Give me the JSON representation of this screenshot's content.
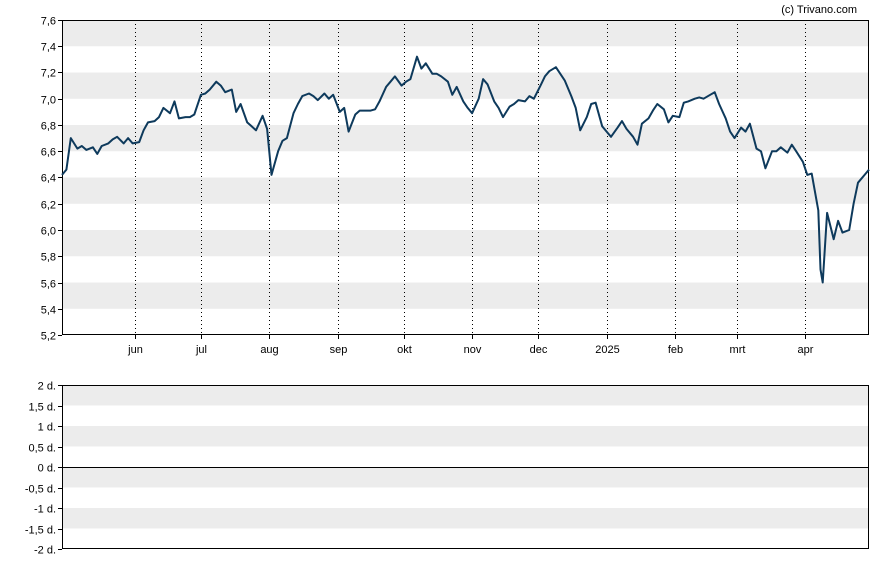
{
  "credit": "(c) Trivano.com",
  "chart_data": [
    {
      "type": "line",
      "title": "",
      "xlabel": "",
      "ylabel": "",
      "ylim": [
        5.2,
        7.6
      ],
      "yticks": [
        "7,6",
        "7,4",
        "7,2",
        "7,0",
        "6,8",
        "6,6",
        "6,4",
        "6,2",
        "6,0",
        "5,8",
        "5,6",
        "5,4",
        "5,2"
      ],
      "ytick_values": [
        7.6,
        7.4,
        7.2,
        7.0,
        6.8,
        6.6,
        6.4,
        6.2,
        6.0,
        5.8,
        5.6,
        5.4,
        5.2
      ],
      "xlim": [
        "2024-04-29",
        "2025-04-30"
      ],
      "xticks": [
        {
          "label": "jun",
          "date": "2024-06-01"
        },
        {
          "label": "jul",
          "date": "2024-07-01"
        },
        {
          "label": "aug",
          "date": "2024-08-01"
        },
        {
          "label": "sep",
          "date": "2024-09-01"
        },
        {
          "label": "okt",
          "date": "2024-10-01"
        },
        {
          "label": "nov",
          "date": "2024-11-01"
        },
        {
          "label": "dec",
          "date": "2024-12-01"
        },
        {
          "label": "2025",
          "date": "2025-01-01"
        },
        {
          "label": "feb",
          "date": "2025-02-01"
        },
        {
          "label": "mrt",
          "date": "2025-03-01"
        },
        {
          "label": "apr",
          "date": "2025-04-01"
        }
      ],
      "grid": "alternating-bands",
      "line_color": "#0e3a5c",
      "series": [
        {
          "x": [
            "2024-04-29",
            "2024-05-01",
            "2024-05-03",
            "2024-05-06",
            "2024-05-08",
            "2024-05-10",
            "2024-05-13",
            "2024-05-15",
            "2024-05-17",
            "2024-05-20",
            "2024-05-22",
            "2024-05-24",
            "2024-05-27",
            "2024-05-29",
            "2024-05-31",
            "2024-06-03",
            "2024-06-05",
            "2024-06-07",
            "2024-06-10",
            "2024-06-12",
            "2024-06-14",
            "2024-06-17",
            "2024-06-19",
            "2024-06-21",
            "2024-06-24",
            "2024-06-26",
            "2024-06-28",
            "2024-07-01",
            "2024-07-03",
            "2024-07-05",
            "2024-07-08",
            "2024-07-10",
            "2024-07-12",
            "2024-07-15",
            "2024-07-17",
            "2024-07-19",
            "2024-07-22",
            "2024-07-24",
            "2024-07-26",
            "2024-07-29",
            "2024-07-31",
            "2024-08-02",
            "2024-08-05",
            "2024-08-07",
            "2024-08-09",
            "2024-08-12",
            "2024-08-14",
            "2024-08-16",
            "2024-08-19",
            "2024-08-21",
            "2024-08-23",
            "2024-08-26",
            "2024-08-28",
            "2024-08-30",
            "2024-09-02",
            "2024-09-04",
            "2024-09-06",
            "2024-09-09",
            "2024-09-11",
            "2024-09-13",
            "2024-09-16",
            "2024-09-18",
            "2024-09-20",
            "2024-09-23",
            "2024-09-25",
            "2024-09-27",
            "2024-09-30",
            "2024-10-02",
            "2024-10-04",
            "2024-10-07",
            "2024-10-09",
            "2024-10-11",
            "2024-10-14",
            "2024-10-16",
            "2024-10-18",
            "2024-10-21",
            "2024-10-23",
            "2024-10-25",
            "2024-10-28",
            "2024-10-30",
            "2024-11-01",
            "2024-11-04",
            "2024-11-06",
            "2024-11-08",
            "2024-11-11",
            "2024-11-13",
            "2024-11-15",
            "2024-11-18",
            "2024-11-20",
            "2024-11-22",
            "2024-11-25",
            "2024-11-27",
            "2024-11-29",
            "2024-12-02",
            "2024-12-04",
            "2024-12-06",
            "2024-12-09",
            "2024-12-11",
            "2024-12-13",
            "2024-12-16",
            "2024-12-18",
            "2024-12-20",
            "2024-12-23",
            "2024-12-25",
            "2024-12-27",
            "2024-12-30",
            "2025-01-01",
            "2025-01-03",
            "2025-01-06",
            "2025-01-08",
            "2025-01-10",
            "2025-01-13",
            "2025-01-15",
            "2025-01-17",
            "2025-01-20",
            "2025-01-22",
            "2025-01-24",
            "2025-01-27",
            "2025-01-29",
            "2025-01-31",
            "2025-02-03",
            "2025-02-05",
            "2025-02-07",
            "2025-02-10",
            "2025-02-12",
            "2025-02-14",
            "2025-02-17",
            "2025-02-19",
            "2025-02-21",
            "2025-02-24",
            "2025-02-26",
            "2025-02-28",
            "2025-03-03",
            "2025-03-05",
            "2025-03-07",
            "2025-03-10",
            "2025-03-12",
            "2025-03-14",
            "2025-03-17",
            "2025-03-19",
            "2025-03-21",
            "2025-03-24",
            "2025-03-26",
            "2025-03-28",
            "2025-03-31",
            "2025-04-02",
            "2025-04-04",
            "2025-04-07",
            "2025-04-08",
            "2025-04-09",
            "2025-04-11",
            "2025-04-14",
            "2025-04-16",
            "2025-04-18",
            "2025-04-21",
            "2025-04-23",
            "2025-04-25",
            "2025-04-28",
            "2025-04-30"
          ],
          "y": [
            6.42,
            6.46,
            6.7,
            6.62,
            6.64,
            6.61,
            6.63,
            6.58,
            6.64,
            6.66,
            6.69,
            6.71,
            6.66,
            6.7,
            6.66,
            6.67,
            6.76,
            6.82,
            6.83,
            6.86,
            6.93,
            6.89,
            6.98,
            6.85,
            6.86,
            6.86,
            6.88,
            7.03,
            7.04,
            7.07,
            7.13,
            7.1,
            7.05,
            7.07,
            6.9,
            6.96,
            6.82,
            6.79,
            6.76,
            6.87,
            6.77,
            6.42,
            6.6,
            6.68,
            6.7,
            6.89,
            6.96,
            7.02,
            7.04,
            7.02,
            6.99,
            7.04,
            7.0,
            7.03,
            6.9,
            6.93,
            6.75,
            6.88,
            6.91,
            6.91,
            6.91,
            6.92,
            6.98,
            7.09,
            7.13,
            7.17,
            7.1,
            7.13,
            7.15,
            7.32,
            7.23,
            7.27,
            7.19,
            7.19,
            7.17,
            7.13,
            7.03,
            7.09,
            6.98,
            6.93,
            6.89,
            7.0,
            7.15,
            7.11,
            6.98,
            6.93,
            6.86,
            6.94,
            6.96,
            6.99,
            6.98,
            7.02,
            7.0,
            7.1,
            7.17,
            7.21,
            7.24,
            7.19,
            7.14,
            7.02,
            6.93,
            6.76,
            6.86,
            6.96,
            6.97,
            6.79,
            6.75,
            6.71,
            6.78,
            6.83,
            6.77,
            6.71,
            6.65,
            6.81,
            6.85,
            6.91,
            6.96,
            6.92,
            6.82,
            6.87,
            6.86,
            6.97,
            6.98,
            7.0,
            7.01,
            7.0,
            7.03,
            7.05,
            6.96,
            6.85,
            6.75,
            6.7,
            6.78,
            6.75,
            6.81,
            6.62,
            6.6,
            6.47,
            6.6,
            6.6,
            6.63,
            6.59,
            6.65,
            6.6,
            6.52,
            6.42,
            6.43,
            6.15,
            5.7,
            5.6,
            6.13,
            5.93,
            6.07,
            5.98,
            6.0,
            6.2,
            6.36,
            6.42,
            6.46
          ]
        }
      ]
    },
    {
      "type": "line",
      "title": "",
      "ylim": [
        -2,
        2
      ],
      "yticks": [
        "2 d.",
        "1,5 d.",
        "1 d.",
        "0,5 d.",
        "0 d.",
        "-0,5 d.",
        "-1 d.",
        "-1,5 d.",
        "-2 d."
      ],
      "ytick_values": [
        2,
        1.5,
        1,
        0.5,
        0,
        -0.5,
        -1,
        -1.5,
        -2
      ],
      "grid": "alternating-bands",
      "zero_line": true,
      "series": []
    }
  ]
}
